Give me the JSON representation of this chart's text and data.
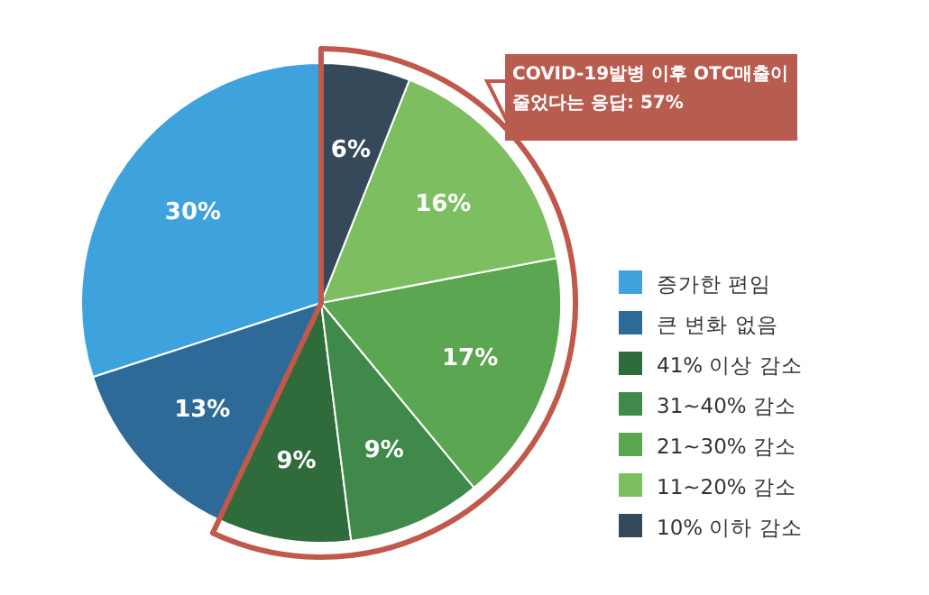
{
  "chart_data": {
    "type": "pie",
    "categories": [
      "증가한 편임",
      "큰 변화 없음",
      "41% 이상 감소",
      "31~40% 감소",
      "21~30% 감소",
      "11~20% 감소",
      "10% 이하 감소"
    ],
    "values": [
      30,
      13,
      9,
      9,
      17,
      16,
      6
    ],
    "value_labels": [
      "30%",
      "13%",
      "9%",
      "9%",
      "17%",
      "16%",
      "6%"
    ],
    "colors": [
      "#3ea3dd",
      "#2e6a98",
      "#2f6b3b",
      "#3f8a4a",
      "#5ba650",
      "#7dbf60",
      "#34495a"
    ],
    "annotations": [
      "COVID-19발병 이후 OTC매출이 줄었다는 응답: 57%"
    ],
    "legend": "right"
  }
}
